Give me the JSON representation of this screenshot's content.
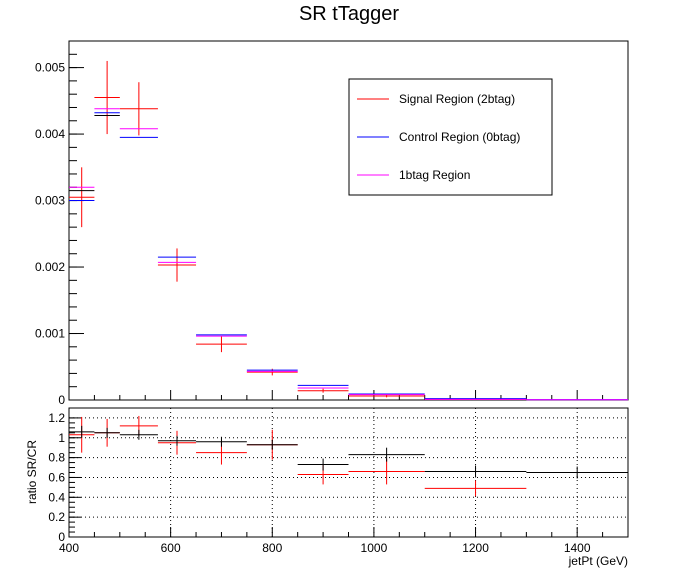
{
  "chart_data": [
    {
      "type": "scatter",
      "title": "SR tTagger",
      "xlabel": "",
      "ylabel": "",
      "xlim": [
        400,
        1500
      ],
      "ylim": [
        0,
        0.0054
      ],
      "y_tick_labels": [
        "0",
        "0.001",
        "0.002",
        "0.003",
        "0.004",
        "0.005"
      ],
      "legend": {
        "placement": "top-right",
        "entries": [
          {
            "label": "Signal Region (2btag)",
            "color": "#ff0000"
          },
          {
            "label": "Control Region (0btag)",
            "color": "#0000ff"
          },
          {
            "label": "1btag Region",
            "color": "#ff00ff"
          }
        ]
      },
      "series": [
        {
          "name": "Signal Region (2btag)",
          "color": "#ff0000",
          "points": [
            {
              "x": 425,
              "xerr": 25,
              "y": 0.00305,
              "yerr": 0.00045
            },
            {
              "x": 475,
              "xerr": 25,
              "y": 0.00455,
              "yerr": 0.00055
            },
            {
              "x": 537.5,
              "xerr": 37.5,
              "y": 0.00438,
              "yerr": 0.0004
            },
            {
              "x": 612.5,
              "xerr": 37.5,
              "y": 0.00203,
              "yerr": 0.00025
            },
            {
              "x": 700,
              "xerr": 50,
              "y": 0.00084,
              "yerr": 0.00012
            },
            {
              "x": 800,
              "xerr": 50,
              "y": 0.00042,
              "yerr": 5e-05
            },
            {
              "x": 900,
              "xerr": 50,
              "y": 0.00014,
              "yerr": 3e-05
            },
            {
              "x": 1025,
              "xerr": 75,
              "y": 6e-05,
              "yerr": 2e-05
            },
            {
              "x": 1200,
              "xerr": 100,
              "y": 1e-05,
              "yerr": 5e-06
            }
          ]
        },
        {
          "name": "Control Region (0btag)",
          "color": "#0000ff",
          "points": [
            {
              "x": 425,
              "xerr": 25,
              "y": 0.003
            },
            {
              "x": 475,
              "xerr": 25,
              "y": 0.00432
            },
            {
              "x": 537.5,
              "xerr": 37.5,
              "y": 0.00395
            },
            {
              "x": 612.5,
              "xerr": 37.5,
              "y": 0.00215
            },
            {
              "x": 700,
              "xerr": 50,
              "y": 0.00098
            },
            {
              "x": 800,
              "xerr": 50,
              "y": 0.00045
            },
            {
              "x": 900,
              "xerr": 50,
              "y": 0.00022
            },
            {
              "x": 1025,
              "xerr": 75,
              "y": 9e-05
            },
            {
              "x": 1200,
              "xerr": 100,
              "y": 2e-05
            },
            {
              "x": 1400,
              "xerr": 100,
              "y": 5e-06
            }
          ]
        },
        {
          "name": "1btag Region",
          "color": "#ff00ff",
          "points": [
            {
              "x": 425,
              "xerr": 25,
              "y": 0.0032
            },
            {
              "x": 475,
              "xerr": 25,
              "y": 0.00438
            },
            {
              "x": 537.5,
              "xerr": 37.5,
              "y": 0.00408
            },
            {
              "x": 612.5,
              "xerr": 37.5,
              "y": 0.00207
            },
            {
              "x": 700,
              "xerr": 50,
              "y": 0.00096
            },
            {
              "x": 800,
              "xerr": 50,
              "y": 0.00043
            },
            {
              "x": 900,
              "xerr": 50,
              "y": 0.00018
            },
            {
              "x": 1025,
              "xerr": 75,
              "y": 8e-05
            },
            {
              "x": 1200,
              "xerr": 100,
              "y": 1e-05
            },
            {
              "x": 1400,
              "xerr": 100,
              "y": 3e-06
            }
          ]
        },
        {
          "name": "",
          "color": "#000000",
          "points": [
            {
              "x": 425,
              "xerr": 25,
              "y": 0.00315
            },
            {
              "x": 475,
              "xerr": 25,
              "y": 0.00428
            }
          ]
        }
      ]
    },
    {
      "type": "scatter",
      "title": "",
      "xlabel": "jetPt (GeV)",
      "ylabel": "ratio SR/CR",
      "xlim": [
        400,
        1500
      ],
      "ylim": [
        0,
        1.3
      ],
      "x_tick_labels": [
        "400",
        "600",
        "800",
        "1000",
        "1200",
        "1400"
      ],
      "y_tick_labels": [
        "0",
        "0.2",
        "0.4",
        "0.6",
        "0.8",
        "1",
        "1.2"
      ],
      "grid": true,
      "series": [
        {
          "name": "",
          "color": "#ff0000",
          "points": [
            {
              "x": 425,
              "xerr": 25,
              "y": 1.03,
              "yerr": 0.18
            },
            {
              "x": 475,
              "xerr": 25,
              "y": 1.05,
              "yerr": 0.14
            },
            {
              "x": 537.5,
              "xerr": 37.5,
              "y": 1.12,
              "yerr": 0.1
            },
            {
              "x": 612.5,
              "xerr": 37.5,
              "y": 0.95,
              "yerr": 0.12
            },
            {
              "x": 700,
              "xerr": 50,
              "y": 0.85,
              "yerr": 0.12
            },
            {
              "x": 800,
              "xerr": 50,
              "y": 0.93,
              "yerr": 0.15
            },
            {
              "x": 900,
              "xerr": 50,
              "y": 0.63,
              "yerr": 0.1
            },
            {
              "x": 1025,
              "xerr": 75,
              "y": 0.66,
              "yerr": 0.13
            },
            {
              "x": 1200,
              "xerr": 100,
              "y": 0.49,
              "yerr": 0.08
            }
          ]
        },
        {
          "name": "",
          "color": "#000000",
          "points": [
            {
              "x": 425,
              "xerr": 25,
              "y": 1.06,
              "yerr": 0.06
            },
            {
              "x": 475,
              "xerr": 25,
              "y": 1.05,
              "yerr": 0.05
            },
            {
              "x": 537.5,
              "xerr": 37.5,
              "y": 1.03,
              "yerr": 0.05
            },
            {
              "x": 612.5,
              "xerr": 37.5,
              "y": 0.97,
              "yerr": 0.05
            },
            {
              "x": 700,
              "xerr": 50,
              "y": 0.96,
              "yerr": 0.05
            },
            {
              "x": 800,
              "xerr": 50,
              "y": 0.93,
              "yerr": 0.05
            },
            {
              "x": 900,
              "xerr": 50,
              "y": 0.73,
              "yerr": 0.06
            },
            {
              "x": 1025,
              "xerr": 75,
              "y": 0.83,
              "yerr": 0.07
            },
            {
              "x": 1200,
              "xerr": 100,
              "y": 0.66,
              "yerr": 0.06
            },
            {
              "x": 1400,
              "xerr": 100,
              "y": 0.65,
              "yerr": 0.06
            }
          ]
        }
      ]
    }
  ]
}
